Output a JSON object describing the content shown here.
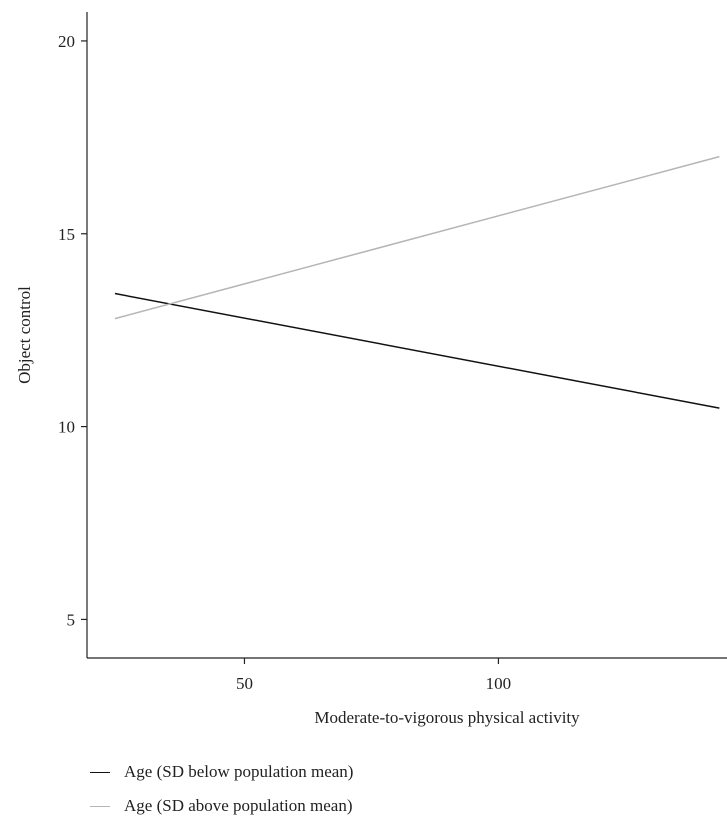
{
  "chart_data": {
    "type": "line",
    "xlabel": "Moderate-to-vigorous physical activity",
    "ylabel": "Object control",
    "xlim": [
      19,
      145
    ],
    "ylim": [
      4,
      20.75
    ],
    "x_ticks": [
      50,
      100
    ],
    "y_ticks": [
      5,
      10,
      15,
      20
    ],
    "x_tick_labels": [
      "50",
      "100"
    ],
    "y_tick_labels": [
      "5",
      "10",
      "15",
      "20"
    ],
    "grid": false,
    "legend_position": "bottom-left",
    "series": [
      {
        "name": "Age (SD below population mean)",
        "color": "#111111",
        "x": [
          24.5,
          143.5
        ],
        "y": [
          13.45,
          10.48
        ]
      },
      {
        "name": "Age (SD above population mean)",
        "color": "#b5b5b5",
        "x": [
          24.5,
          143.5
        ],
        "y": [
          12.8,
          17.0
        ]
      }
    ]
  }
}
